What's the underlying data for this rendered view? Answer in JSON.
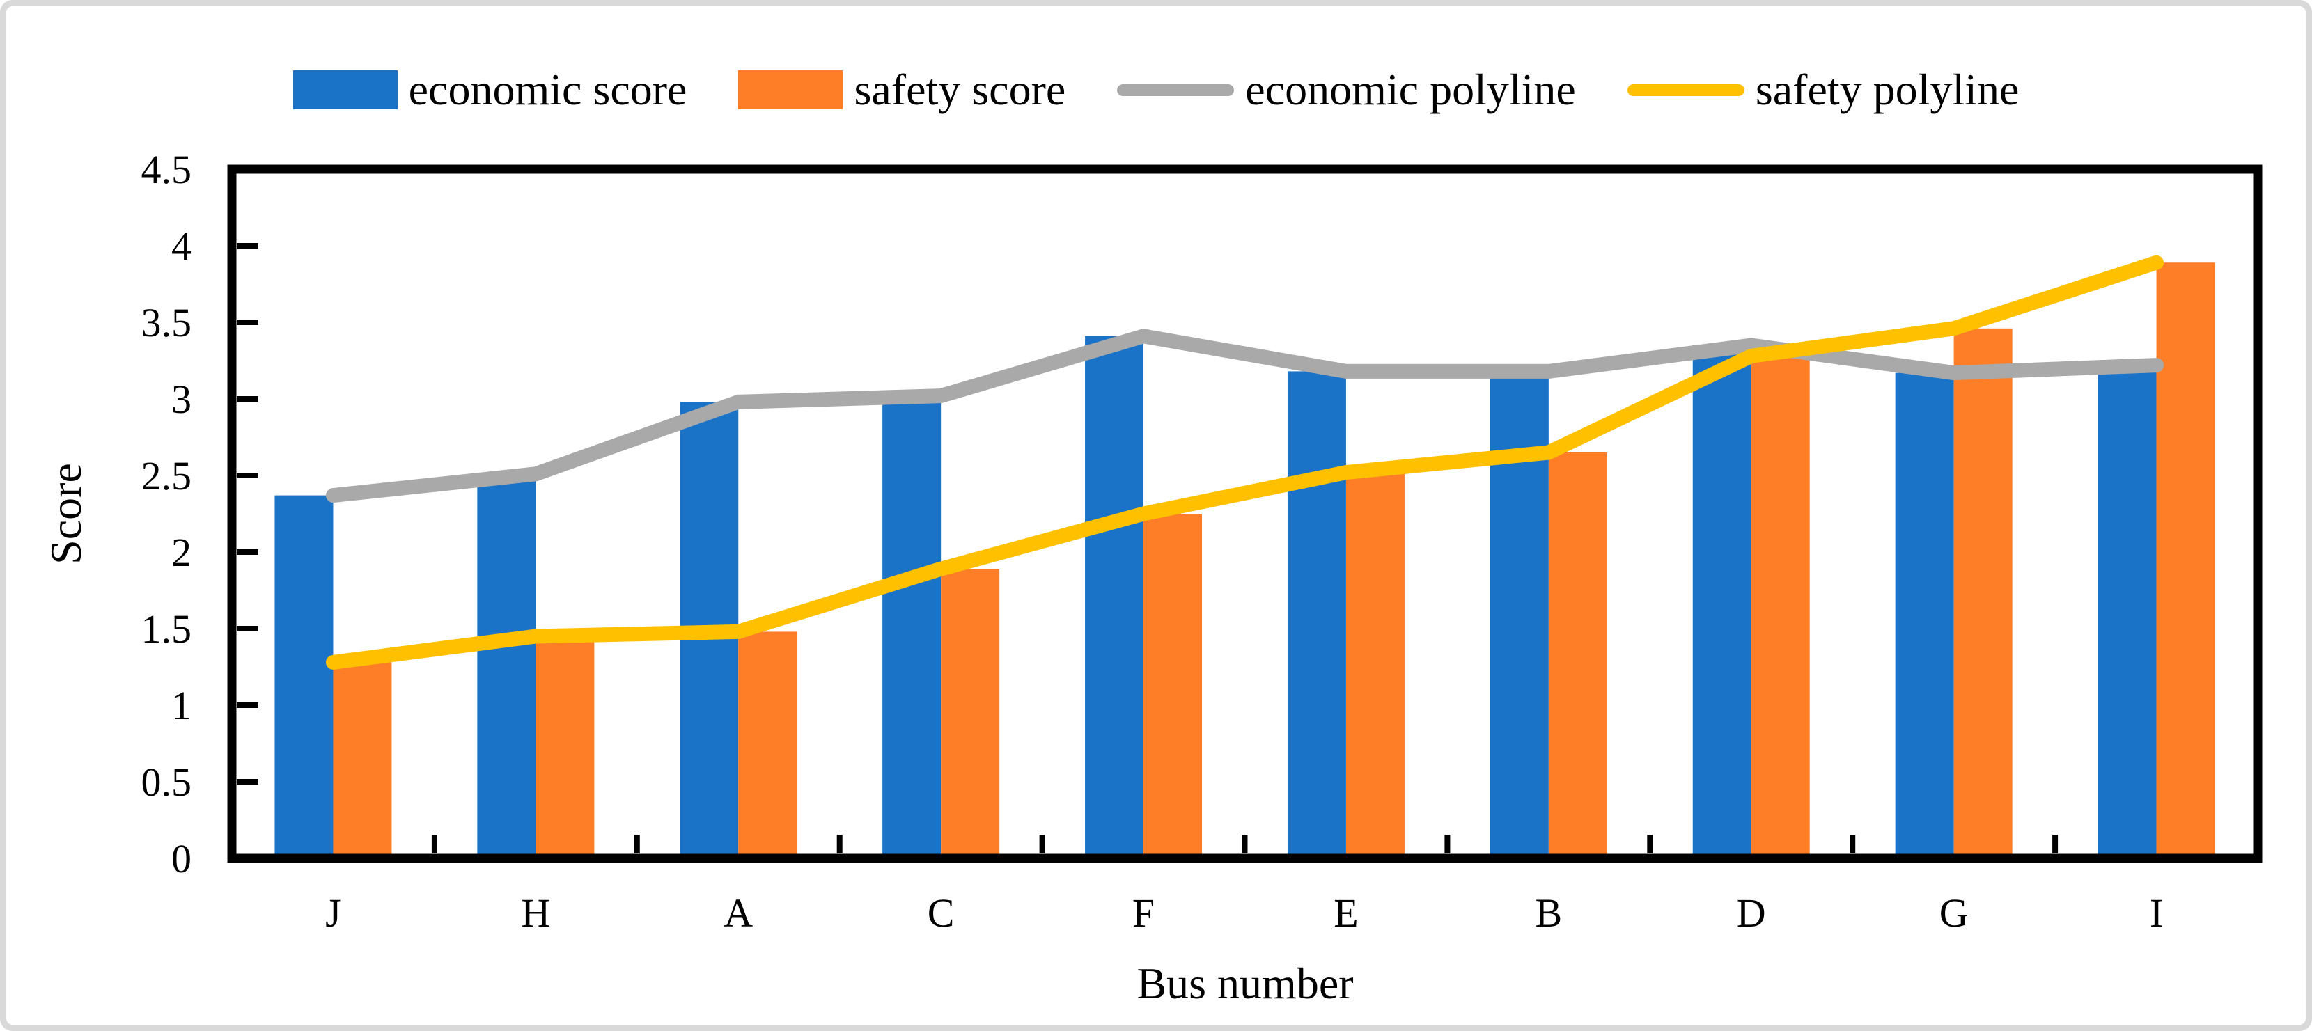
{
  "figure": {
    "background": "#ffffff",
    "border_color": "#d9d9d9"
  },
  "colors": {
    "economic_bar": "#1B73C8",
    "safety_bar": "#FD7E27",
    "economic_line": "#A9A9A9",
    "safety_line": "#FFC000",
    "axis": "#000000"
  },
  "legend": {
    "items": [
      {
        "label": "economic score",
        "type": "bar",
        "color": "#1B73C8"
      },
      {
        "label": "safety score",
        "type": "bar",
        "color": "#FD7E27"
      },
      {
        "label": "economic polyline",
        "type": "line",
        "color": "#A9A9A9"
      },
      {
        "label": "safety polyline",
        "type": "line",
        "color": "#FFC000"
      }
    ]
  },
  "chart_data": {
    "type": "bar+line",
    "title": "",
    "xlabel": "Bus number",
    "ylabel": "Score",
    "categories": [
      "J",
      "H",
      "A",
      "C",
      "F",
      "E",
      "B",
      "D",
      "G",
      "I"
    ],
    "series": [
      {
        "name": "economic score",
        "type": "bar",
        "color": "#1B73C8",
        "values": [
          2.37,
          2.51,
          2.98,
          3.02,
          3.41,
          3.18,
          3.18,
          3.35,
          3.17,
          3.22
        ]
      },
      {
        "name": "safety score",
        "type": "bar",
        "color": "#FD7E27",
        "values": [
          1.28,
          1.45,
          1.48,
          1.89,
          2.25,
          2.52,
          2.65,
          3.28,
          3.46,
          3.89
        ]
      },
      {
        "name": "economic polyline",
        "type": "line",
        "color": "#A9A9A9",
        "values": [
          2.37,
          2.51,
          2.98,
          3.02,
          3.41,
          3.18,
          3.18,
          3.35,
          3.17,
          3.22
        ]
      },
      {
        "name": "safety polyline",
        "type": "line",
        "color": "#FFC000",
        "values": [
          1.28,
          1.45,
          1.48,
          1.89,
          2.25,
          2.52,
          2.65,
          3.28,
          3.46,
          3.89
        ]
      }
    ],
    "ylim": [
      0,
      4.5
    ],
    "ytick_step": 0.5,
    "ytick_labels": [
      "0",
      "0.5",
      "1",
      "1.5",
      "2",
      "2.5",
      "3",
      "3.5",
      "4",
      "4.5"
    ],
    "grid": false,
    "legend_position": "top",
    "plot_border": true,
    "tick_direction": "in"
  }
}
